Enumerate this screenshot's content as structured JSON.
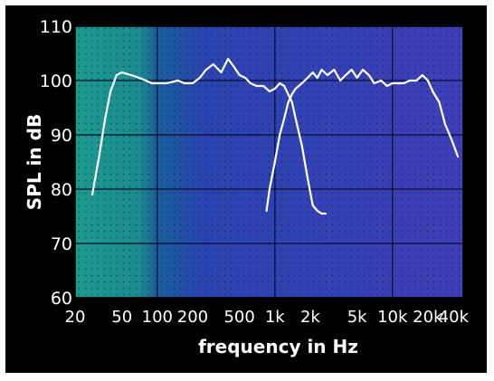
{
  "chart_data": {
    "type": "line",
    "xlabel": "frequency in Hz",
    "ylabel": "SPL in dB",
    "x_scale": "log",
    "xlim": [
      20,
      40000
    ],
    "ylim": [
      60,
      110
    ],
    "grid": true,
    "y_ticks": [
      60,
      70,
      80,
      90,
      100,
      110
    ],
    "x_ticks": [
      {
        "value": 20,
        "label": "20"
      },
      {
        "value": 50,
        "label": "50"
      },
      {
        "value": 100,
        "label": "100"
      },
      {
        "value": 200,
        "label": "200"
      },
      {
        "value": 500,
        "label": "500"
      },
      {
        "value": 1000,
        "label": "1k"
      },
      {
        "value": 2000,
        "label": "2k"
      },
      {
        "value": 5000,
        "label": "5k"
      },
      {
        "value": 10000,
        "label": "10k"
      },
      {
        "value": 20000,
        "label": "20k"
      },
      {
        "value": 40000,
        "label": "40k"
      }
    ],
    "background": {
      "gradient": [
        {
          "value": 20,
          "color": "#1d9a8e"
        },
        {
          "value": 70,
          "color": "#1c8b91"
        },
        {
          "value": 100,
          "color": "#1b5f9a"
        },
        {
          "value": 250,
          "color": "#2944b0"
        },
        {
          "value": 40000,
          "color": "#3f3fb6"
        }
      ],
      "grid_color": "#0c0c2a",
      "dot_color": "#0f1240"
    },
    "line_color": "#ffffff",
    "series": [
      {
        "x": [
          28,
          32,
          36,
          40,
          45,
          50,
          60,
          70,
          80,
          90,
          100,
          120,
          150,
          170,
          200,
          230,
          260,
          300,
          350,
          400,
          450,
          500,
          560,
          620,
          700,
          800,
          900,
          1000,
          1100,
          1200,
          1400,
          1500,
          1700,
          1900,
          2100,
          2300,
          2500,
          2700
        ],
        "y": [
          79,
          86,
          93,
          98,
          101,
          101.5,
          101,
          100.5,
          100,
          99.5,
          99.5,
          99.5,
          100,
          99.5,
          99.5,
          100.5,
          102,
          103,
          101.5,
          104,
          102.5,
          101,
          100.5,
          99.5,
          99,
          99,
          98,
          98.5,
          99.5,
          99,
          96,
          93,
          88,
          82,
          77,
          76,
          75.5,
          75.5
        ]
      },
      {
        "x": [
          850,
          900,
          1000,
          1100,
          1200,
          1300,
          1400,
          1500,
          1700,
          1900,
          2100,
          2300,
          2500,
          2800,
          3200,
          3600,
          4000,
          4500,
          5000,
          5600,
          6300,
          7000,
          8000,
          9000,
          10000,
          11000,
          12500,
          14000,
          16000,
          18000,
          20000,
          22000,
          25000,
          28000,
          32000,
          36000
        ],
        "y": [
          76,
          80,
          85,
          90,
          93,
          96,
          97.5,
          98.5,
          99.5,
          100.5,
          101.5,
          100.5,
          102,
          101,
          102,
          100,
          101,
          102,
          100.5,
          102,
          101,
          99.5,
          100,
          99,
          99.5,
          99.5,
          99.5,
          100,
          100,
          101,
          100,
          98,
          96,
          92,
          89,
          86
        ]
      }
    ]
  }
}
